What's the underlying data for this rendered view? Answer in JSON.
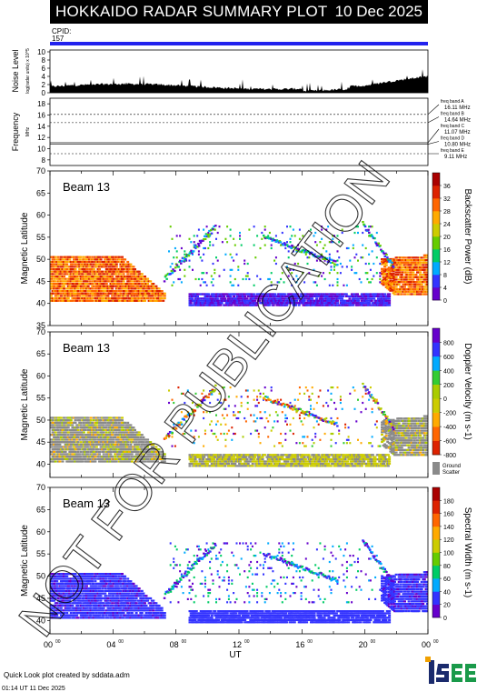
{
  "header": {
    "title": "HOKKAIDO RADAR SUMMARY PLOT",
    "date": "10 Dec 2025"
  },
  "cpid": {
    "label": "CPID:",
    "value": "157"
  },
  "noise_panel": {
    "ylabel": "Noise Level",
    "ylabel_sub": "log(radar units) x 10^5",
    "ticks": [
      "0",
      "2",
      "4",
      "6",
      "8",
      "10"
    ]
  },
  "freq_panel": {
    "ylabel": "Frequency",
    "ylabel_unit": "MHz",
    "ticks": [
      "8",
      "10",
      "12",
      "14",
      "16",
      "18"
    ],
    "bands": [
      {
        "name": "freq band A",
        "value": "16.11 MHz"
      },
      {
        "name": "freq band B",
        "value": "14.64 MHz"
      },
      {
        "name": "freq band C",
        "value": "11.07 MHz"
      },
      {
        "name": "freq band D",
        "value": "10.80 MHz"
      },
      {
        "name": "freq band E",
        "value": "9.11 MHz"
      }
    ]
  },
  "watermark": "NOT FOR PUBLICATION",
  "chart_data": [
    {
      "type": "heatmap",
      "beam_label": "Beam 13",
      "ylabel": "Magnetic Latitude",
      "yticks": [
        "35",
        "40",
        "45",
        "50",
        "55",
        "60",
        "65",
        "70"
      ],
      "ylim": [
        35,
        70
      ],
      "colorbar_label": "Backscatter Power (dB)",
      "colorbar_ticks": [
        "0",
        "4",
        "8",
        "12",
        "16",
        "20",
        "24",
        "28",
        "32",
        "36"
      ],
      "colorbar_colors": [
        "#6600cc",
        "#3333ff",
        "#00aaff",
        "#00cc66",
        "#66cc00",
        "#cccc00",
        "#ffaa00",
        "#ff6600",
        "#dd2200",
        "#aa0000"
      ]
    },
    {
      "type": "heatmap",
      "beam_label": "Beam 13",
      "ylabel": "Magnetic Latitude",
      "yticks": [
        "40",
        "45",
        "50",
        "55",
        "60",
        "65",
        "70"
      ],
      "ylim": [
        37,
        70
      ],
      "colorbar_label": "Doppler Velocity (m s-1)",
      "colorbar_ticks": [
        "-800",
        "-600",
        "-400",
        "-200",
        "0",
        "200",
        "400",
        "600",
        "800"
      ],
      "colorbar_colors": [
        "#dd2200",
        "#ff6600",
        "#ffaa00",
        "#cccc00",
        "#aacc00",
        "#33cc33",
        "#00aaff",
        "#3333ff",
        "#6600cc"
      ],
      "ground_scatter_label": "Ground Scatter"
    },
    {
      "type": "heatmap",
      "beam_label": "Beam 13",
      "ylabel": "Magnetic Latitude",
      "yticks": [
        "40",
        "45",
        "50",
        "55",
        "60",
        "65",
        "70"
      ],
      "ylim": [
        37,
        70
      ],
      "colorbar_label": "Spectral Width (m s-1)",
      "colorbar_ticks": [
        "0",
        "20",
        "40",
        "60",
        "80",
        "100",
        "120",
        "140",
        "160",
        "180"
      ],
      "colorbar_colors": [
        "#6600cc",
        "#3333ff",
        "#00aaff",
        "#00cc66",
        "#66cc00",
        "#cccc00",
        "#ffaa00",
        "#ff6600",
        "#dd2200",
        "#aa0000"
      ]
    }
  ],
  "xaxis": {
    "label": "UT",
    "ticks": [
      "00",
      "04",
      "08",
      "12",
      "16",
      "20",
      "00"
    ],
    "tick_sup": "00"
  },
  "footer": {
    "line1": "Quick Look plot created by sddata.adm",
    "line2": "01:14 UT 11 Dec 2025"
  },
  "logo_text": "ISEE"
}
